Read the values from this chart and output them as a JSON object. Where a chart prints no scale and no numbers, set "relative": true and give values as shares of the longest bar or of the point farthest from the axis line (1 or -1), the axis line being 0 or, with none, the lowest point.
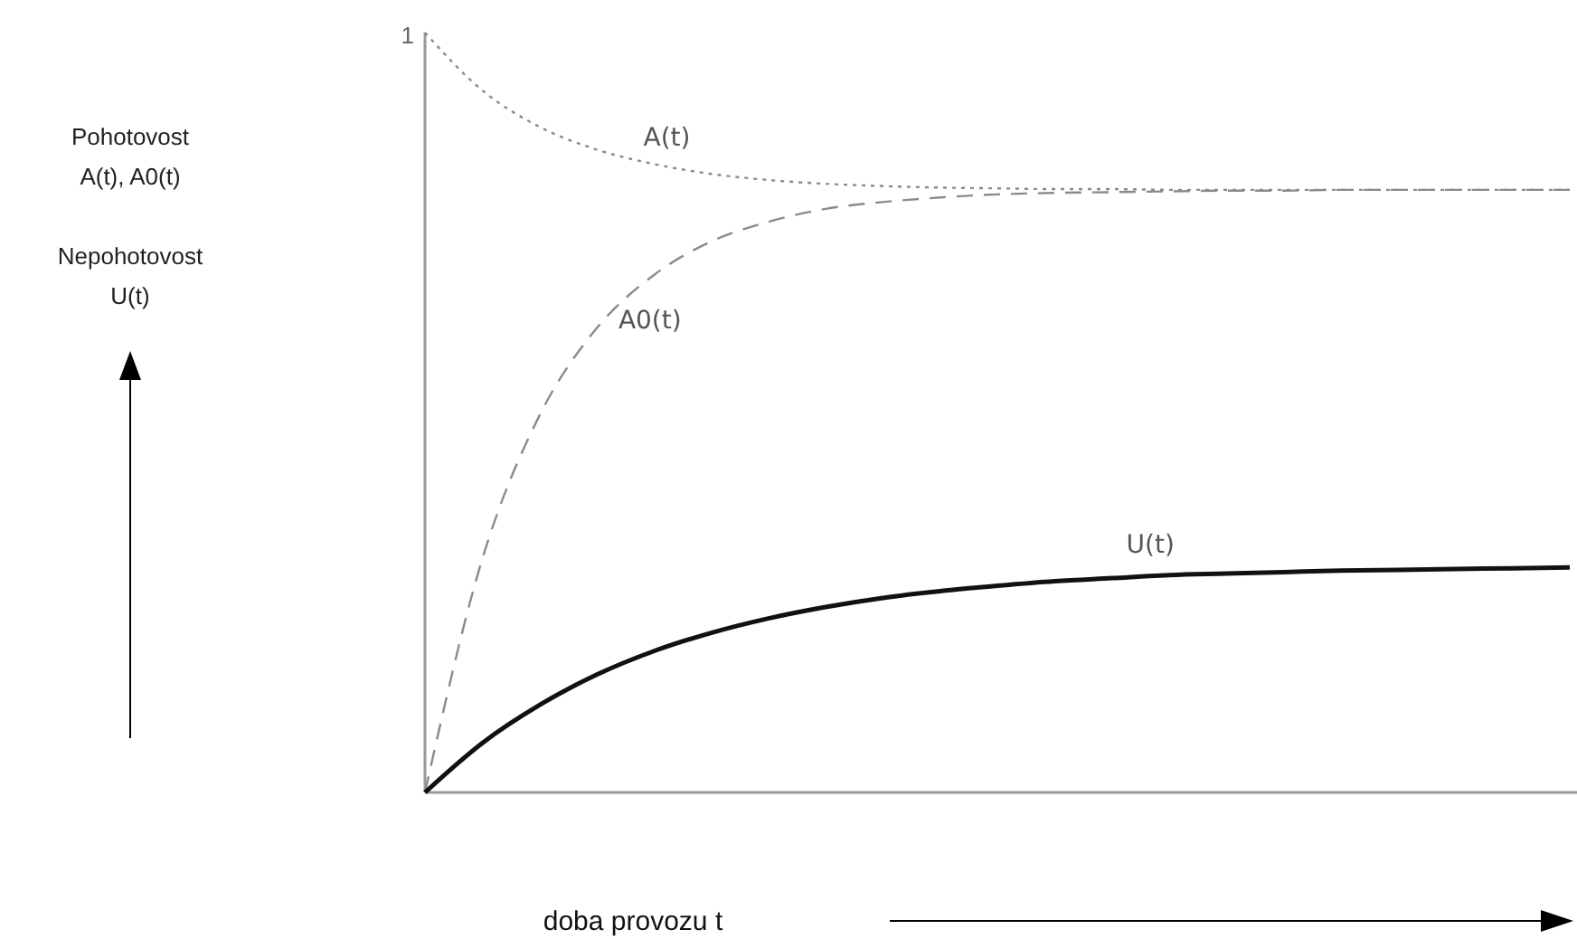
{
  "chart_data": {
    "type": "line",
    "relative": true,
    "xlabel": "doba provozu t",
    "ylabel": "Pohotovost\nA(t), A0(t)\n\nNepohotovost\nU(t)",
    "annotations": [
      "1"
    ],
    "categories": [
      null,
      null,
      null,
      null,
      null,
      null,
      null,
      null,
      null,
      null,
      null,
      null,
      null,
      null,
      null,
      null,
      null,
      null,
      null,
      null,
      null
    ],
    "series": [
      {
        "name": "A(t)",
        "color": "#8a8a8a",
        "line_style": "dotted",
        "values": [
          1,
          0.924,
          0.876,
          0.846,
          0.827,
          0.814,
          0.806,
          0.801,
          0.798,
          0.796,
          0.795,
          0.794,
          0.794,
          0.793,
          0.793,
          0.793,
          0.793,
          0.793,
          0.793,
          0.793,
          0.793
        ]
      },
      {
        "name": "A0(t)",
        "color": "#8a8a8a",
        "line_style": "dashed",
        "values": [
          0,
          0.307,
          0.496,
          0.611,
          0.681,
          0.725,
          0.751,
          0.768,
          0.777,
          0.783,
          0.787,
          0.789,
          0.79,
          0.791,
          0.792,
          0.792,
          0.793,
          0.793,
          0.793,
          0.793,
          0.793
        ]
      },
      {
        "name": "U(t)",
        "color": "#111111",
        "line_style": "solid",
        "values": [
          0,
          0.065,
          0.115,
          0.155,
          0.186,
          0.21,
          0.229,
          0.244,
          0.256,
          0.265,
          0.272,
          0.278,
          0.282,
          0.286,
          0.288,
          0.29,
          0.292,
          0.293,
          0.294,
          0.295,
          0.296
        ]
      }
    ]
  }
}
